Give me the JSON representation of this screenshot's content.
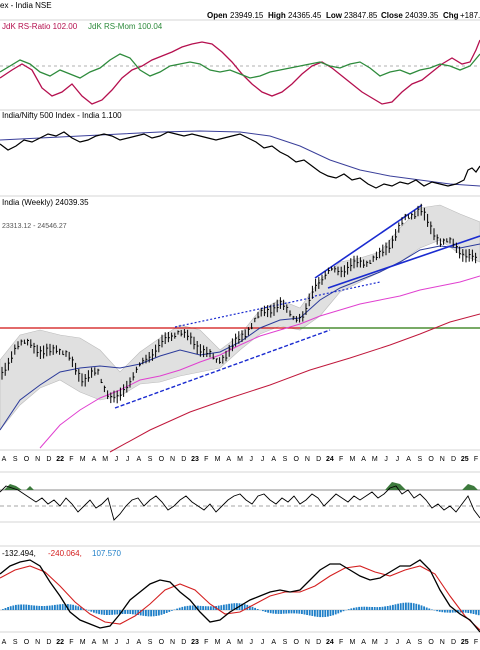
{
  "header": {
    "title": "ex - India NSE",
    "open_label": "Open",
    "open": "23949.15",
    "high_label": "High",
    "high": "24365.45",
    "low_label": "Low",
    "low": "23847.85",
    "close_label": "Close",
    "close": "24039.35",
    "chg_label": "Chg",
    "chg": "+187."
  },
  "panel_rrg": {
    "label_a": "JdK RS-Ratio 102.00",
    "label_b": "JdK RS-Mom 100.04",
    "colors": {
      "ratio": "#b5104f",
      "mom": "#2e8b3c"
    }
  },
  "panel_rs": {
    "label": "India/Nifty 500 Index - India 1.100",
    "colors": {
      "rs": "#000000",
      "ma": "#3a3f9a"
    }
  },
  "panel_price": {
    "label": "India (Weekly) 24039.35",
    "bb_label": "23313.12 - 24546.27",
    "colors": {
      "bars": "#000000",
      "bands": "#d6d6d6",
      "ma_fast": "#2b3a9a",
      "ma_mid": "#e040d0",
      "ma_slow": "#c0183c",
      "support": "#2e9a2e",
      "resistance": "#d01010",
      "trend": "#1a2bd0"
    }
  },
  "panel_rsi": {
    "label": ""
  },
  "panel_macd": {
    "label_a": "-132.494,",
    "label_b": "-240.064,",
    "label_c": "107.570",
    "colors": {
      "macd": "#000000",
      "signal": "#d42020",
      "hist": "#1f7fc8",
      "value_c": "#1f7fc8"
    }
  },
  "chart_data": {
    "type": "line",
    "axis_months": [
      "A",
      "S",
      "O",
      "N",
      "D",
      "22",
      "F",
      "M",
      "A",
      "M",
      "J",
      "J",
      "A",
      "S",
      "O",
      "N",
      "D",
      "23",
      "F",
      "M",
      "A",
      "M",
      "J",
      "J",
      "A",
      "S",
      "O",
      "N",
      "D",
      "24",
      "F",
      "M",
      "A",
      "M",
      "J",
      "J",
      "A",
      "S",
      "O",
      "N",
      "D",
      "25",
      "F"
    ],
    "x_tick_labels": [
      "A",
      "S",
      "O",
      "N",
      "D",
      "22",
      "F",
      "M",
      "A",
      "M",
      "J",
      "J",
      "A",
      "S",
      "O",
      "N",
      "D",
      "23",
      "F",
      "M",
      "A",
      "M",
      "J",
      "J",
      "A",
      "S",
      "O",
      "N",
      "D",
      "24",
      "F",
      "M",
      "A",
      "M",
      "J",
      "J",
      "A",
      "S",
      "O",
      "N",
      "D",
      "25",
      "F"
    ],
    "price_weekly": {
      "name": "India (Weekly)",
      "last": 24039.35,
      "open": 23949.15,
      "high": 24365.45,
      "low": 23847.85,
      "close": 24039.35
    },
    "rs_ratio_last": 102.0,
    "rs_mom_last": 100.04,
    "rs_vs_nifty500_last": 1.1,
    "bollinger_band": [
      23313.12,
      24546.27
    ],
    "macd": {
      "macd": -132.494,
      "signal": -240.064,
      "histogram": 107.57
    }
  }
}
